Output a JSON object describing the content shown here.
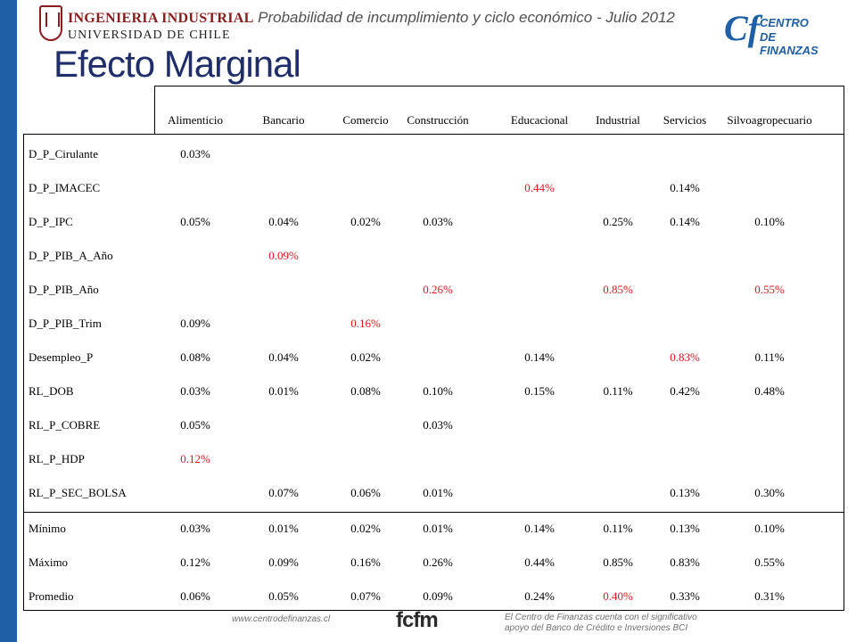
{
  "header": {
    "logo_left_line1": "INGENIERIA INDUSTRIAL",
    "logo_left_line2": "UNIVERSIDAD DE CHILE",
    "subtitle": "Probabilidad de incumplimiento y ciclo económico - Julio 2012",
    "logo_right_mark": "Cf",
    "logo_right_line1": "CENTRO",
    "logo_right_line2": "DE FINANZAS"
  },
  "title": "Efecto Marginal",
  "table": {
    "columns": [
      "Alimenticio",
      "Bancario",
      "Comercio",
      "Construcción",
      "Educacional",
      "Industrial",
      "Servicios",
      "Silvoagropecuario"
    ],
    "rows": [
      {
        "label": "D_P_Cirulante",
        "cells": [
          {
            "v": "0.03%",
            "red": false
          },
          null,
          null,
          null,
          null,
          null,
          null,
          null
        ]
      },
      {
        "label": "D_P_IMACEC",
        "cells": [
          null,
          null,
          null,
          null,
          {
            "v": "0.44%",
            "red": true
          },
          null,
          {
            "v": "0.14%",
            "red": false
          },
          null
        ]
      },
      {
        "label": "D_P_IPC",
        "cells": [
          {
            "v": "0.05%",
            "red": false
          },
          {
            "v": "0.04%",
            "red": false
          },
          {
            "v": "0.02%",
            "red": false
          },
          {
            "v": "0.03%",
            "red": false
          },
          null,
          {
            "v": "0.25%",
            "red": false
          },
          {
            "v": "0.14%",
            "red": false
          },
          {
            "v": "0.10%",
            "red": false
          }
        ]
      },
      {
        "label": "D_P_PIB_A_Año",
        "cells": [
          null,
          {
            "v": "0.09%",
            "red": true
          },
          null,
          null,
          null,
          null,
          null,
          null
        ]
      },
      {
        "label": "D_P_PIB_Año",
        "cells": [
          null,
          null,
          null,
          {
            "v": "0.26%",
            "red": true
          },
          null,
          {
            "v": "0.85%",
            "red": true
          },
          null,
          {
            "v": "0.55%",
            "red": true
          }
        ]
      },
      {
        "label": "D_P_PIB_Trim",
        "cells": [
          {
            "v": "0.09%",
            "red": false
          },
          null,
          {
            "v": "0.16%",
            "red": true
          },
          null,
          null,
          null,
          null,
          null
        ]
      },
      {
        "label": "Desempleo_P",
        "cells": [
          {
            "v": "0.08%",
            "red": false
          },
          {
            "v": "0.04%",
            "red": false
          },
          {
            "v": "0.02%",
            "red": false
          },
          null,
          {
            "v": "0.14%",
            "red": false
          },
          null,
          {
            "v": "0.83%",
            "red": true
          },
          {
            "v": "0.11%",
            "red": false
          }
        ]
      },
      {
        "label": "RL_DOB",
        "cells": [
          {
            "v": "0.03%",
            "red": false
          },
          {
            "v": "0.01%",
            "red": false
          },
          {
            "v": "0.08%",
            "red": false
          },
          {
            "v": "0.10%",
            "red": false
          },
          {
            "v": "0.15%",
            "red": false
          },
          {
            "v": "0.11%",
            "red": false
          },
          {
            "v": "0.42%",
            "red": false
          },
          {
            "v": "0.48%",
            "red": false
          }
        ]
      },
      {
        "label": "RL_P_COBRE",
        "cells": [
          {
            "v": "0.05%",
            "red": false
          },
          null,
          null,
          {
            "v": "0.03%",
            "red": false
          },
          null,
          null,
          null,
          null
        ]
      },
      {
        "label": "RL_P_HDP",
        "cells": [
          {
            "v": "0.12%",
            "red": true
          },
          null,
          null,
          null,
          null,
          null,
          null,
          null
        ]
      },
      {
        "label": "RL_P_SEC_BOLSA",
        "cells": [
          null,
          {
            "v": "0.07%",
            "red": false
          },
          {
            "v": "0.06%",
            "red": false
          },
          {
            "v": "0.01%",
            "red": false
          },
          null,
          null,
          {
            "v": "0.13%",
            "red": false
          },
          {
            "v": "0.30%",
            "red": false
          }
        ]
      },
      {
        "label": "Mínimo",
        "cells": [
          {
            "v": "0.03%",
            "red": false
          },
          {
            "v": "0.01%",
            "red": false
          },
          {
            "v": "0.02%",
            "red": false
          },
          {
            "v": "0.01%",
            "red": false
          },
          {
            "v": "0.14%",
            "red": false
          },
          {
            "v": "0.11%",
            "red": false
          },
          {
            "v": "0.13%",
            "red": false
          },
          {
            "v": "0.10%",
            "red": false
          }
        ]
      },
      {
        "label": "Máximo",
        "cells": [
          {
            "v": "0.12%",
            "red": false
          },
          {
            "v": "0.09%",
            "red": false
          },
          {
            "v": "0.16%",
            "red": false
          },
          {
            "v": "0.26%",
            "red": false
          },
          {
            "v": "0.44%",
            "red": false
          },
          {
            "v": "0.85%",
            "red": false
          },
          {
            "v": "0.83%",
            "red": false
          },
          {
            "v": "0.55%",
            "red": false
          }
        ]
      },
      {
        "label": "Promedio",
        "cells": [
          {
            "v": "0.06%",
            "red": false
          },
          {
            "v": "0.05%",
            "red": false
          },
          {
            "v": "0.07%",
            "red": false
          },
          {
            "v": "0.09%",
            "red": false
          },
          {
            "v": "0.24%",
            "red": false
          },
          {
            "v": "0.40%",
            "red": true
          },
          {
            "v": "0.33%",
            "red": false
          },
          {
            "v": "0.31%",
            "red": false
          }
        ]
      }
    ]
  },
  "footer": {
    "url": "www.centrodefinanzas.cl",
    "logo": "fcfm",
    "note_line1": "El Centro de Finanzas cuenta con el significativo",
    "note_line2": "apoyo del Banco de Crédito e Inversiones BCI"
  },
  "colors": {
    "accent_blue": "#1f5fa6",
    "title_navy": "#1f2e6b",
    "highlight_red": "#e8141a",
    "logo_red": "#8a1c1c"
  }
}
